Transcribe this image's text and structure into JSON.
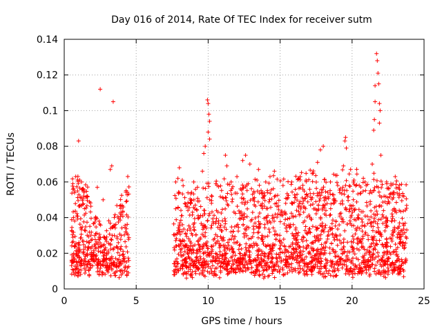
{
  "chart_data": {
    "type": "scatter",
    "title": "Day 016 of 2014, Rate Of TEC Index for receiver sutm",
    "xlabel": "GPS time / hours",
    "ylabel": "ROTI / TECUs",
    "xlim": [
      0,
      25
    ],
    "ylim": [
      0,
      0.14
    ],
    "xticks": [
      0,
      5,
      10,
      15,
      20,
      25
    ],
    "yticks": [
      0,
      0.02,
      0.04,
      0.06,
      0.08,
      0.1,
      0.12,
      0.14
    ],
    "xtick_labels": [
      "0",
      "5",
      "10",
      "15",
      "20",
      "25"
    ],
    "ytick_labels": [
      "0",
      "0.02",
      "0.04",
      "0.06",
      "0.08",
      "0.1",
      "0.12",
      "0.14"
    ],
    "grid": true,
    "marker": "+",
    "color": "#ff0000",
    "data_gap": [
      4.5,
      7.6
    ],
    "series": [
      {
        "name": "ROTI",
        "points": [
          [
            1.0,
            0.083
          ],
          [
            2.5,
            0.112
          ],
          [
            3.4,
            0.105
          ],
          [
            0.6,
            0.059
          ],
          [
            0.8,
            0.063
          ],
          [
            1.2,
            0.06
          ],
          [
            1.6,
            0.052
          ],
          [
            2.3,
            0.057
          ],
          [
            2.7,
            0.05
          ],
          [
            3.2,
            0.067
          ],
          [
            3.3,
            0.069
          ],
          [
            4.1,
            0.046
          ],
          [
            4.3,
            0.049
          ],
          [
            7.9,
            0.062
          ],
          [
            8.0,
            0.068
          ],
          [
            8.2,
            0.061
          ],
          [
            9.0,
            0.06
          ],
          [
            9.6,
            0.066
          ],
          [
            9.7,
            0.076
          ],
          [
            9.8,
            0.08
          ],
          [
            9.95,
            0.106
          ],
          [
            10.0,
            0.104
          ],
          [
            10.05,
            0.098
          ],
          [
            10.1,
            0.094
          ],
          [
            10.0,
            0.088
          ],
          [
            10.1,
            0.084
          ],
          [
            11.2,
            0.075
          ],
          [
            11.3,
            0.069
          ],
          [
            11.6,
            0.06
          ],
          [
            12.0,
            0.063
          ],
          [
            12.4,
            0.072
          ],
          [
            12.6,
            0.075
          ],
          [
            12.9,
            0.07
          ],
          [
            13.5,
            0.067
          ],
          [
            14.0,
            0.06
          ],
          [
            14.3,
            0.063
          ],
          [
            14.6,
            0.066
          ],
          [
            15.2,
            0.058
          ],
          [
            15.8,
            0.06
          ],
          [
            16.4,
            0.063
          ],
          [
            16.8,
            0.061
          ],
          [
            17.3,
            0.065
          ],
          [
            17.6,
            0.071
          ],
          [
            17.8,
            0.078
          ],
          [
            18.0,
            0.08
          ],
          [
            18.5,
            0.06
          ],
          [
            19.0,
            0.058
          ],
          [
            19.4,
            0.069
          ],
          [
            19.5,
            0.083
          ],
          [
            19.55,
            0.085
          ],
          [
            19.6,
            0.079
          ],
          [
            19.9,
            0.067
          ],
          [
            20.1,
            0.06
          ],
          [
            20.5,
            0.058
          ],
          [
            20.9,
            0.06
          ],
          [
            21.4,
            0.07
          ],
          [
            21.5,
            0.089
          ],
          [
            21.55,
            0.095
          ],
          [
            21.6,
            0.105
          ],
          [
            21.6,
            0.114
          ],
          [
            21.7,
            0.132
          ],
          [
            21.75,
            0.128
          ],
          [
            21.8,
            0.121
          ],
          [
            21.85,
            0.115
          ],
          [
            21.9,
            0.104
          ],
          [
            21.95,
            0.1
          ],
          [
            21.9,
            0.093
          ],
          [
            22.0,
            0.075
          ],
          [
            22.4,
            0.06
          ],
          [
            22.7,
            0.058
          ],
          [
            22.9,
            0.053
          ],
          [
            23.0,
            0.063
          ],
          [
            23.3,
            0.056
          ],
          [
            23.6,
            0.052
          ]
        ]
      }
    ],
    "background_points": 2800
  }
}
